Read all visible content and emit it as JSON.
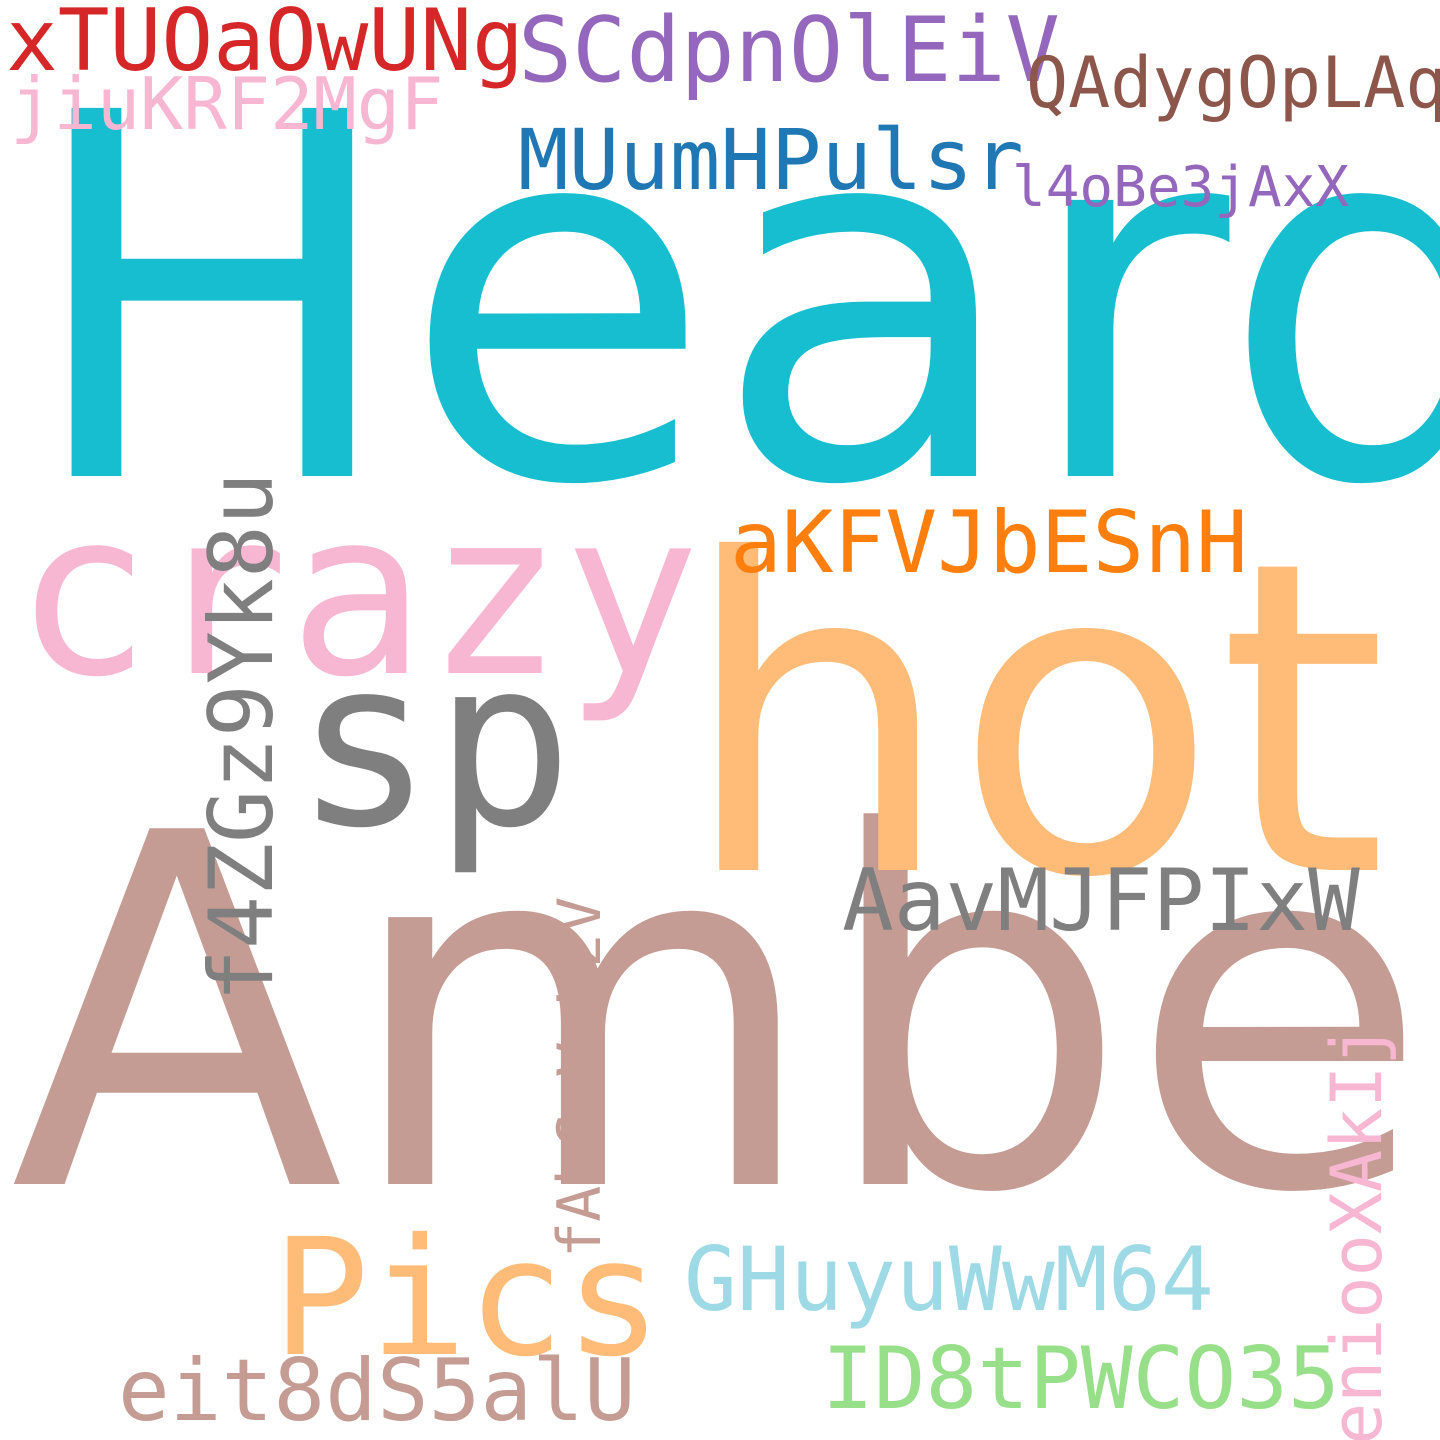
{
  "words": {
    "w01": {
      "text": "Heard",
      "color": "#17becf"
    },
    "w02": {
      "text": "Amber",
      "color": "#c49c94"
    },
    "w03": {
      "text": "hot",
      "color": "#ffbb78"
    },
    "w04": {
      "text": "crazy",
      "color": "#f7b6d2"
    },
    "w05": {
      "text": "sp",
      "color": "#7f7f7f"
    },
    "w06": {
      "text": "Pics",
      "color": "#ffbb78"
    },
    "w07": {
      "text": "xTUOaOwUNg",
      "color": "#d62728"
    },
    "w08": {
      "text": "SCdpnOlEiV",
      "color": "#9467bd"
    },
    "w09": {
      "text": "QAdygOpLAq",
      "color": "#8c564b"
    },
    "w10": {
      "text": "jiuKRF2MgF",
      "color": "#f7b6d2"
    },
    "w11": {
      "text": "MUumHPulsr",
      "color": "#1f77b4"
    },
    "w12": {
      "text": "l4oBe3jAxX",
      "color": "#9467bd"
    },
    "w13": {
      "text": "aKFVJbESnH",
      "color": "#ff7f0e"
    },
    "w14": {
      "text": "AavMJFPIxW",
      "color": "#7f7f7f"
    },
    "w15": {
      "text": "f4ZGz9Yk8u",
      "color": "#7f7f7f"
    },
    "w16": {
      "text": "fAbCvVzKzV",
      "color": "#c49c94"
    },
    "w17": {
      "text": "eniooXAkIj",
      "color": "#f7b6d2"
    },
    "w18": {
      "text": "GHuyuWwM64",
      "color": "#9edae5"
    },
    "w19": {
      "text": "ID8tPWCO35",
      "color": "#98df8a"
    },
    "w20": {
      "text": "eit8dS5alU",
      "color": "#c49c94"
    }
  }
}
